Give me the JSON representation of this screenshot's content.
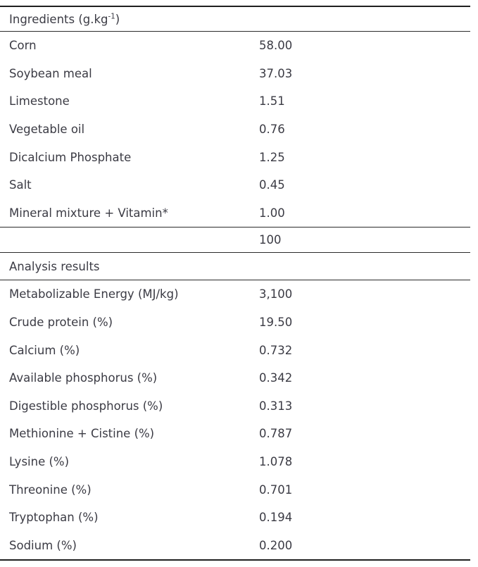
{
  "page": {
    "background_color": "#ffffff",
    "text_color": "#3b3b44",
    "rule_color": "#1f1f1f"
  },
  "table": {
    "ingredients_header": {
      "prefix": "Ingredients (g.kg",
      "superscript": "-1",
      "suffix": ")"
    },
    "ingredients_rows": [
      {
        "label": "Corn",
        "value": "58.00"
      },
      {
        "label": "Soybean meal",
        "value": "37.03"
      },
      {
        "label": "Limestone",
        "value": "1.51"
      },
      {
        "label": "Vegetable oil",
        "value": "0.76"
      },
      {
        "label": "Dicalcium Phosphate",
        "value": "1.25"
      },
      {
        "label": "Salt",
        "value": "0.45"
      },
      {
        "label": "Mineral mixture + Vitamin*",
        "value": "1.00"
      }
    ],
    "total_row": {
      "label": "",
      "value": "100"
    },
    "analysis_header": "Analysis results",
    "analysis_rows": [
      {
        "label": "Metabolizable Energy (MJ/kg)",
        "value": "3,100"
      },
      {
        "label": "Crude protein (%)",
        "value": "19.50"
      },
      {
        "label": "Calcium (%)",
        "value": "0.732"
      },
      {
        "label": "Available phosphorus (%)",
        "value": "0.342"
      },
      {
        "label": "Digestible phosphorus (%)",
        "value": "0.313"
      },
      {
        "label": "Methionine + Cistine (%)",
        "value": "0.787"
      },
      {
        "label": "Lysine (%)",
        "value": "1.078"
      },
      {
        "label": "Threonine (%)",
        "value": "0.701"
      },
      {
        "label": "Tryptophan (%)",
        "value": "0.194"
      },
      {
        "label": "Sodium (%)",
        "value": "0.200"
      }
    ]
  }
}
